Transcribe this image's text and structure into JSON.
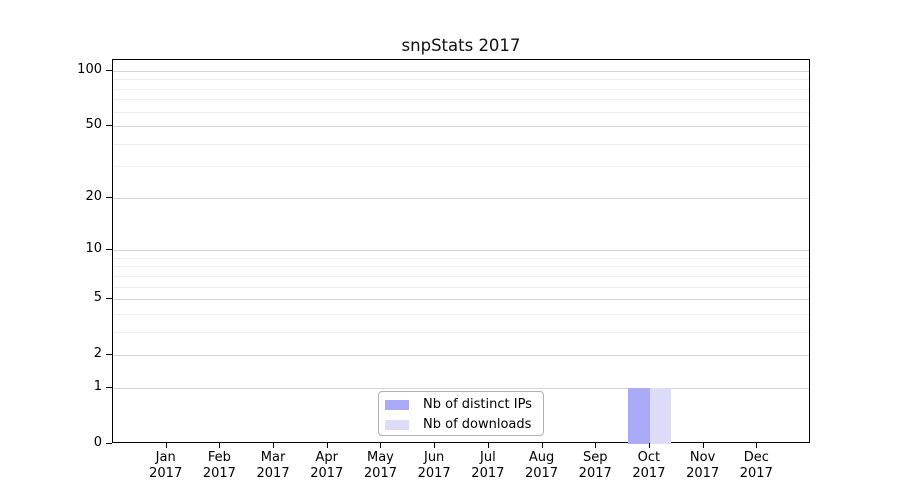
{
  "chart_data": {
    "type": "bar",
    "title": "snpStats 2017",
    "categories": [
      "Jan",
      "Feb",
      "Mar",
      "Apr",
      "May",
      "Jun",
      "Jul",
      "Aug",
      "Sep",
      "Oct",
      "Nov",
      "Dec"
    ],
    "x_tick_second_line": "2017",
    "series": [
      {
        "name": "Nb of distinct IPs",
        "color": "#aaaaf6",
        "values": [
          0,
          0,
          0,
          0,
          0,
          0,
          0,
          0,
          0,
          1,
          0,
          0
        ]
      },
      {
        "name": "Nb of downloads",
        "color": "#dcdcf8",
        "values": [
          0,
          0,
          0,
          0,
          0,
          0,
          0,
          0,
          0,
          1,
          0,
          0
        ]
      }
    ],
    "y_scale": "log1p",
    "ylim": [
      0,
      100
    ],
    "y_major_ticks": [
      0,
      1,
      2,
      5,
      10,
      20,
      50,
      100
    ],
    "y_minor_gridlines": [
      3,
      4,
      6,
      7,
      8,
      9,
      30,
      40,
      60,
      70,
      80,
      90
    ],
    "grid": true,
    "legend_position": "lower-center",
    "colors": {
      "axis": "#000000",
      "major_grid": "#d4d4d4",
      "minor_grid": "#eeeeee",
      "legend_border": "#b0b0b0"
    }
  }
}
